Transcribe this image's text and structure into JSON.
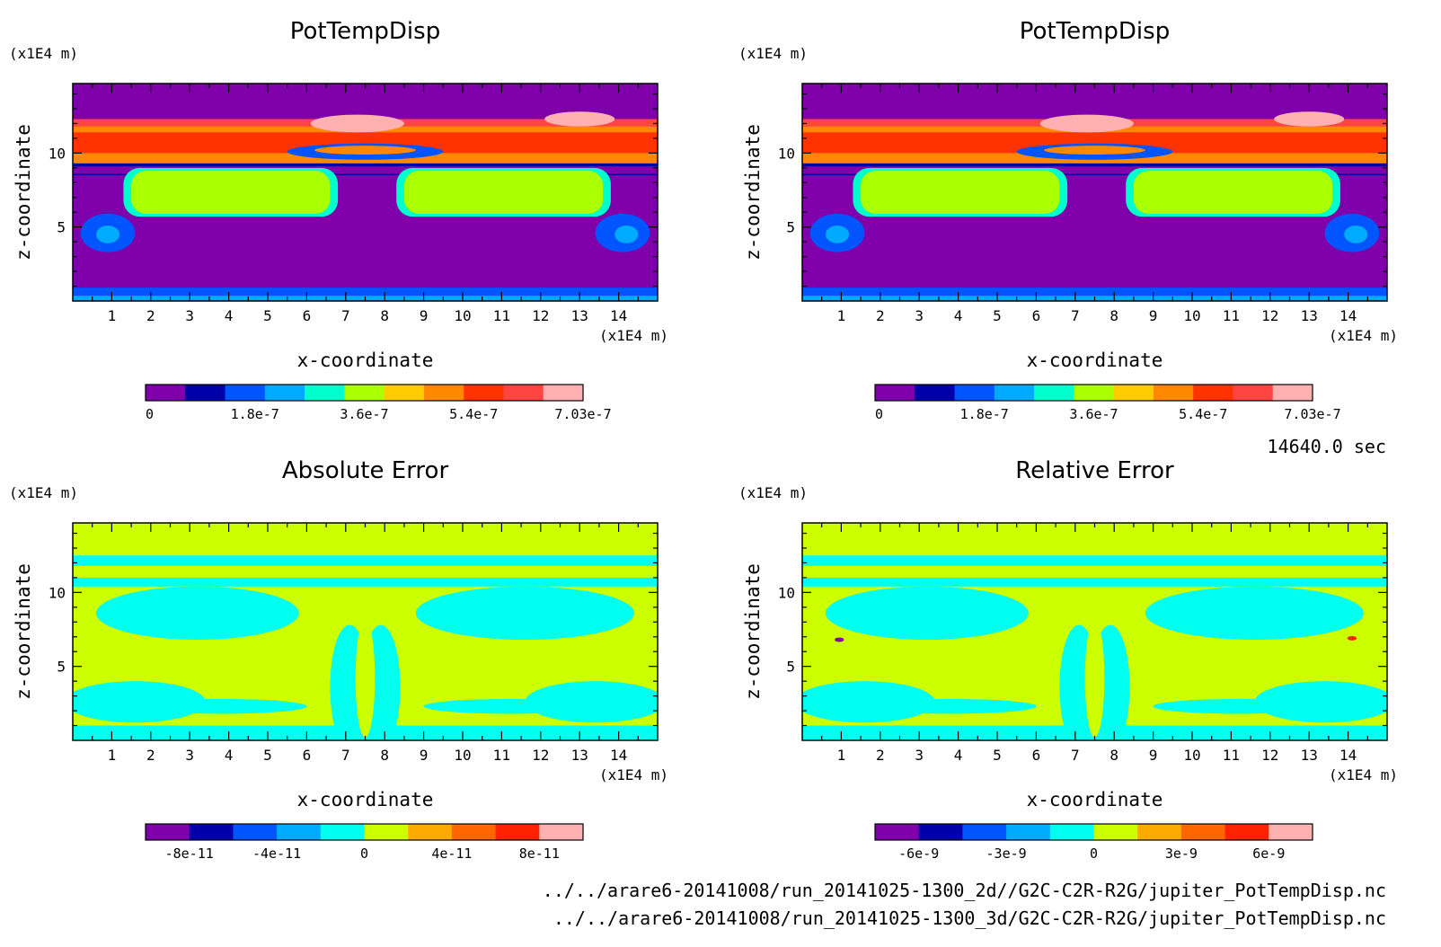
{
  "chart_data": [
    {
      "type": "heatmap",
      "title": "PotTempDisp",
      "xlabel": "x-coordinate",
      "ylabel": "z-coordinate",
      "x_unit": "(x1E4 m)",
      "y_unit": "(x1E4 m)",
      "xlim": [
        0,
        15
      ],
      "ylim": [
        0,
        14.7
      ],
      "x_ticks": [
        1,
        2,
        3,
        4,
        5,
        6,
        7,
        8,
        9,
        10,
        11,
        12,
        13,
        14
      ],
      "y_ticks": [
        5,
        10
      ],
      "colorbar": {
        "colors": [
          "#7f00aa",
          "#0000aa",
          "#0055ff",
          "#00aaff",
          "#00ffcc",
          "#aaff00",
          "#ffcc00",
          "#ff8800",
          "#ff3300",
          "#ff4444",
          "#ffb0b0"
        ],
        "tick_labels": [
          "0",
          "1.8e-7",
          "3.6e-7",
          "5.4e-7",
          "7.03e-7"
        ],
        "range": [
          0,
          7.03e-07
        ]
      }
    },
    {
      "type": "heatmap",
      "title": "PotTempDisp",
      "xlabel": "x-coordinate",
      "ylabel": "z-coordinate",
      "x_unit": "(x1E4 m)",
      "y_unit": "(x1E4 m)",
      "xlim": [
        0,
        15
      ],
      "ylim": [
        0,
        14.7
      ],
      "x_ticks": [
        1,
        2,
        3,
        4,
        5,
        6,
        7,
        8,
        9,
        10,
        11,
        12,
        13,
        14
      ],
      "y_ticks": [
        5,
        10
      ],
      "colorbar": {
        "colors": [
          "#7f00aa",
          "#0000aa",
          "#0055ff",
          "#00aaff",
          "#00ffcc",
          "#aaff00",
          "#ffcc00",
          "#ff8800",
          "#ff3300",
          "#ff4444",
          "#ffb0b0"
        ],
        "tick_labels": [
          "0",
          "1.8e-7",
          "3.6e-7",
          "5.4e-7",
          "7.03e-7"
        ],
        "range": [
          0,
          7.03e-07
        ]
      }
    },
    {
      "type": "heatmap",
      "title": "Absolute Error",
      "xlabel": "x-coordinate",
      "ylabel": "z-coordinate",
      "x_unit": "(x1E4 m)",
      "y_unit": "(x1E4 m)",
      "xlim": [
        0,
        15
      ],
      "ylim": [
        0,
        14.7
      ],
      "x_ticks": [
        1,
        2,
        3,
        4,
        5,
        6,
        7,
        8,
        9,
        10,
        11,
        12,
        13,
        14
      ],
      "y_ticks": [
        5,
        10
      ],
      "colorbar": {
        "colors": [
          "#7f00aa",
          "#0000aa",
          "#0055ff",
          "#00aaff",
          "#00ffee",
          "#ccff00",
          "#ffaa00",
          "#ff6600",
          "#ff2200",
          "#ffb0b0"
        ],
        "tick_labels": [
          "-8e-11",
          "-4e-11",
          "0",
          "4e-11",
          "8e-11"
        ],
        "range": [
          -1e-10,
          1e-10
        ]
      }
    },
    {
      "type": "heatmap",
      "title": "Relative Error",
      "xlabel": "x-coordinate",
      "ylabel": "z-coordinate",
      "x_unit": "(x1E4 m)",
      "y_unit": "(x1E4 m)",
      "xlim": [
        0,
        15
      ],
      "ylim": [
        0,
        14.7
      ],
      "x_ticks": [
        1,
        2,
        3,
        4,
        5,
        6,
        7,
        8,
        9,
        10,
        11,
        12,
        13,
        14
      ],
      "y_ticks": [
        5,
        10
      ],
      "colorbar": {
        "colors": [
          "#7f00aa",
          "#0000aa",
          "#0055ff",
          "#00aaff",
          "#00ffee",
          "#ccff00",
          "#ffaa00",
          "#ff6600",
          "#ff2200",
          "#ffb0b0"
        ],
        "tick_labels": [
          "-6e-9",
          "-3e-9",
          "0",
          "3e-9",
          "6e-9"
        ],
        "range": [
          -7.5e-09,
          7.5e-09
        ]
      }
    }
  ],
  "time_label": "14640.0 sec",
  "footer": {
    "file_2d": "../../arare6-20141008/run_20141025-1300_2d//G2C-C2R-R2G/jupiter_PotTempDisp.nc",
    "file_3d": "../../arare6-20141008/run_20141025-1300_3d/G2C-C2R-R2G/jupiter_PotTempDisp.nc"
  }
}
